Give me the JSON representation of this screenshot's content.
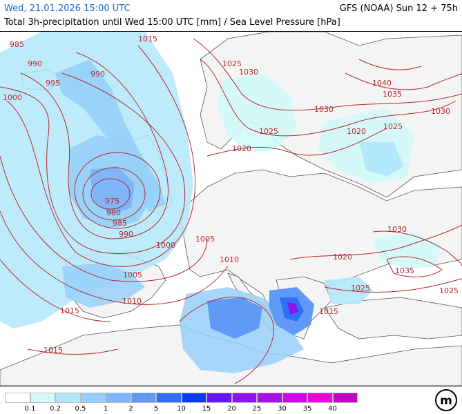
{
  "header": {
    "datetime": "Wed, 21.01.2026 15:00 UTC",
    "model_run": "GFS (NOAA) Sun 12 + 75h",
    "description": "Total 3h-precipitation until Wed 15:00 UTC [mm] / Sea Level Pressure [hPa]"
  },
  "legend": {
    "items": [
      {
        "label": "0.1",
        "color": "#ffffff"
      },
      {
        "label": "0.2",
        "color": "#d2fafa"
      },
      {
        "label": "0.5",
        "color": "#b3e7fb"
      },
      {
        "label": "1",
        "color": "#96d0fa"
      },
      {
        "label": "2",
        "color": "#7fb6f8"
      },
      {
        "label": "5",
        "color": "#6199f7"
      },
      {
        "label": "10",
        "color": "#2e6ef8"
      },
      {
        "label": "15",
        "color": "#0a3cf5"
      },
      {
        "label": "20",
        "color": "#6618f2"
      },
      {
        "label": "25",
        "color": "#8a14ea"
      },
      {
        "label": "30",
        "color": "#a410e5"
      },
      {
        "label": "35",
        "color": "#cc0ae4"
      },
      {
        "label": "40",
        "color": "#e707d8"
      },
      {
        "label": "",
        "color": "#c006c3"
      }
    ]
  },
  "isobar_labels": [
    {
      "text": "985"
    },
    {
      "text": "990"
    },
    {
      "text": "995"
    },
    {
      "text": "1000"
    },
    {
      "text": "1015"
    },
    {
      "text": "990"
    },
    {
      "text": "975"
    },
    {
      "text": "980"
    },
    {
      "text": "985"
    },
    {
      "text": "990"
    },
    {
      "text": "1000"
    },
    {
      "text": "1005"
    },
    {
      "text": "1010"
    },
    {
      "text": "1015"
    },
    {
      "text": "1015"
    },
    {
      "text": "1025"
    },
    {
      "text": "1030"
    },
    {
      "text": "1040"
    },
    {
      "text": "1035"
    },
    {
      "text": "1030"
    },
    {
      "text": "1030"
    },
    {
      "text": "1025"
    },
    {
      "text": "1020"
    },
    {
      "text": "1025"
    },
    {
      "text": "1020"
    },
    {
      "text": "1005"
    },
    {
      "text": "1010"
    },
    {
      "text": "1020"
    },
    {
      "text": "1030"
    },
    {
      "text": "1035"
    },
    {
      "text": "1025"
    },
    {
      "text": "1025"
    },
    {
      "text": "1015"
    }
  ],
  "colors": {
    "isobar": "#b4282d",
    "coast": "#555555",
    "land": "#f7f7f7",
    "sea": "#ffffff",
    "header_datetime": "#1a6ad8"
  },
  "logo": {
    "icon": "meteologix-logo-icon",
    "text": "m"
  }
}
